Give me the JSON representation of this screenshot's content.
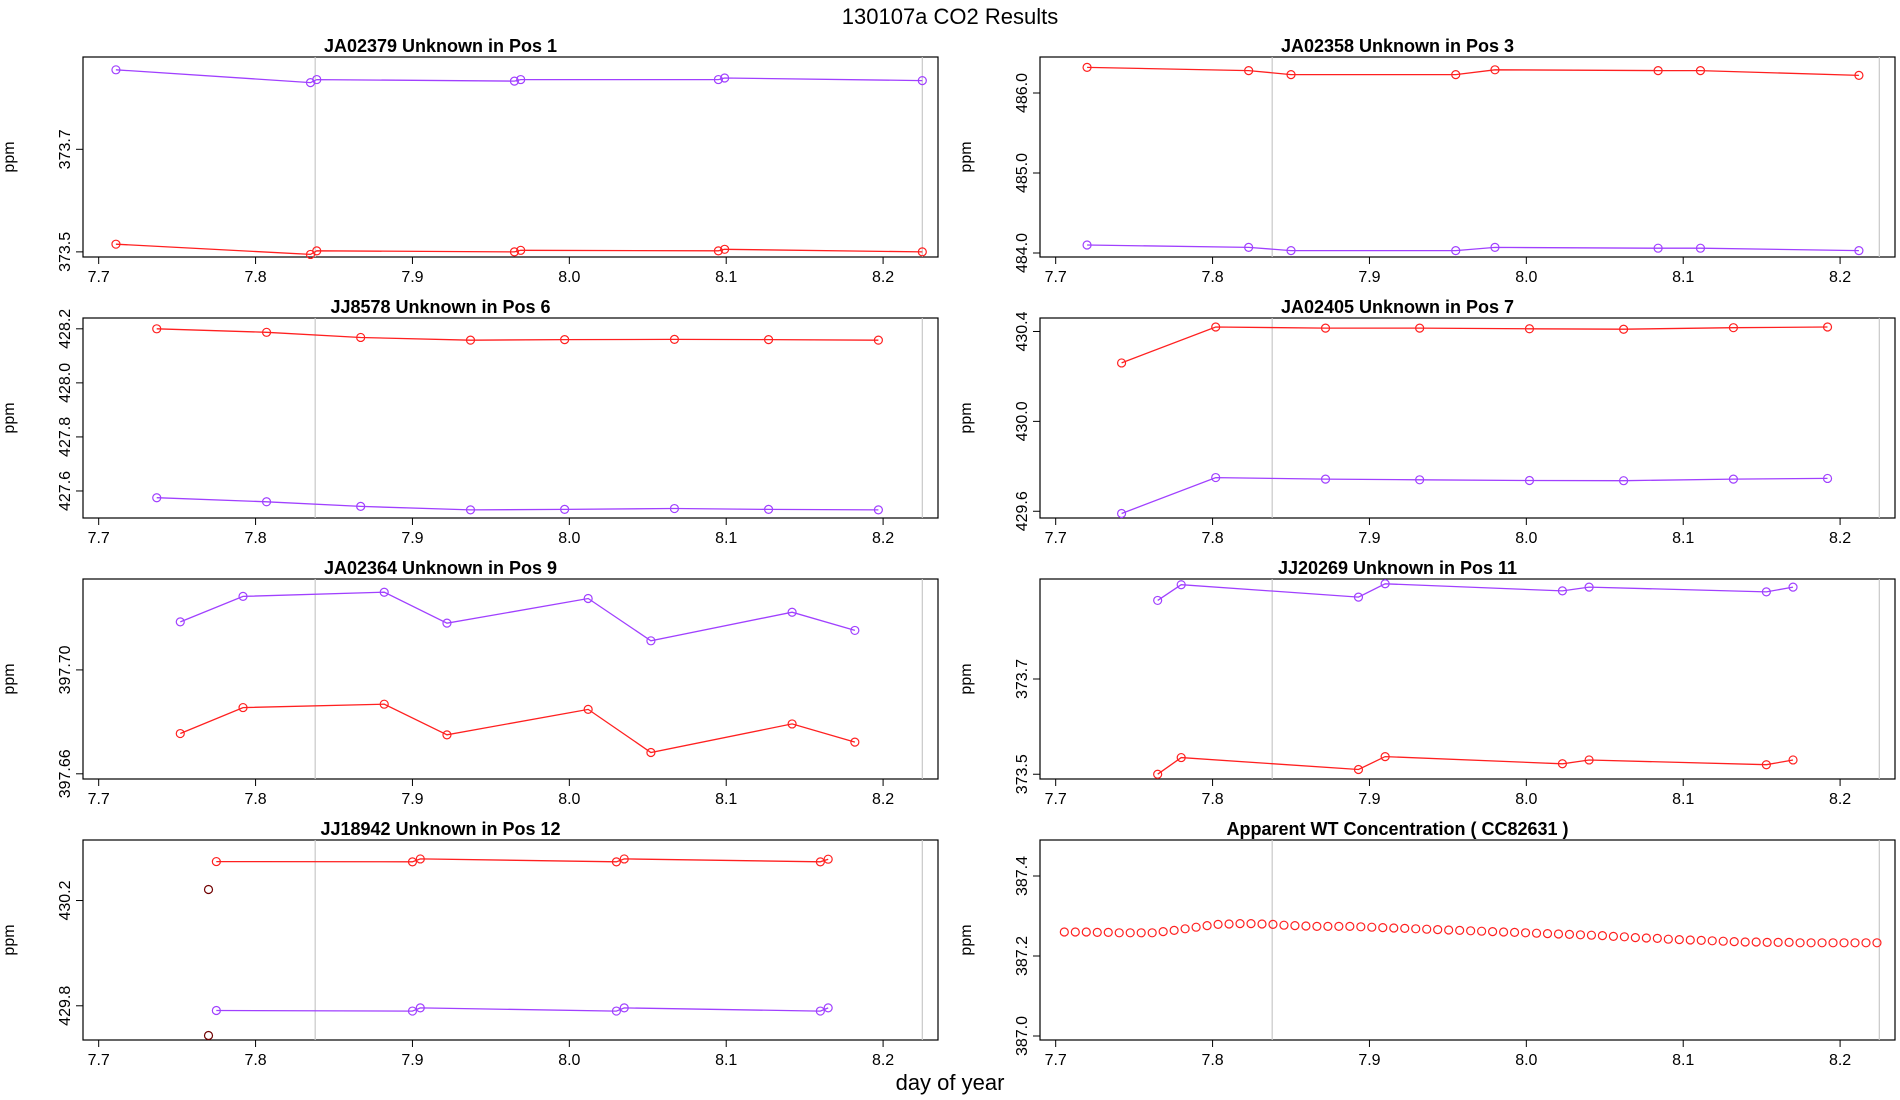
{
  "figure": {
    "title": "130107a  CO2 Results",
    "xlabel": "day of year"
  },
  "colors": {
    "red_series": "#ff2020",
    "purple_series": "#a040ff",
    "outlier": "#700000",
    "marker_line": "#c8c8c8",
    "frame": "#000000"
  },
  "chart_data": [
    {
      "type": "line",
      "title": "JA02379    Unknown in Pos 1",
      "xlabel": "",
      "ylabel": "ppm",
      "xlim": [
        7.69,
        8.235
      ],
      "ylim": [
        373.49,
        373.88
      ],
      "xticks": [
        "7.7",
        "7.8",
        "7.9",
        "8.0",
        "8.1",
        "8.2"
      ],
      "yticks": [
        "373.5",
        "373.7"
      ],
      "vlines": [
        7.838,
        8.225
      ],
      "series": [
        {
          "name": "red",
          "color": "red",
          "x": [
            7.711,
            7.835,
            7.839,
            7.965,
            7.969,
            8.095,
            8.099,
            8.225
          ],
          "y": [
            373.515,
            373.495,
            373.502,
            373.5,
            373.503,
            373.502,
            373.505,
            373.5
          ]
        },
        {
          "name": "purple",
          "color": "purple",
          "x": [
            7.711,
            7.835,
            7.839,
            7.965,
            7.969,
            8.095,
            8.099,
            8.225
          ],
          "y": [
            373.855,
            373.83,
            373.836,
            373.833,
            373.836,
            373.836,
            373.839,
            373.834
          ]
        }
      ]
    },
    {
      "type": "line",
      "title": "JA02358    Unknown in Pos 3",
      "xlabel": "",
      "ylabel": "ppm",
      "xlim": [
        7.69,
        8.235
      ],
      "ylim": [
        483.95,
        486.45
      ],
      "xticks": [
        "7.7",
        "7.8",
        "7.9",
        "8.0",
        "8.1",
        "8.2"
      ],
      "yticks": [
        "484.0",
        "485.0",
        "486.0"
      ],
      "vlines": [
        7.838,
        8.225
      ],
      "series": [
        {
          "name": "red",
          "color": "red",
          "x": [
            7.72,
            7.823,
            7.85,
            7.955,
            7.98,
            8.084,
            8.111,
            8.212
          ],
          "y": [
            486.32,
            486.28,
            486.23,
            486.23,
            486.29,
            486.28,
            486.28,
            486.22
          ]
        },
        {
          "name": "purple",
          "color": "purple",
          "x": [
            7.72,
            7.823,
            7.85,
            7.955,
            7.98,
            8.084,
            8.111,
            8.212
          ],
          "y": [
            484.1,
            484.07,
            484.03,
            484.03,
            484.07,
            484.06,
            484.06,
            484.03
          ]
        }
      ]
    },
    {
      "type": "line",
      "title": "JJ8578    Unknown in Pos 6",
      "xlabel": "",
      "ylabel": "ppm",
      "xlim": [
        7.69,
        8.235
      ],
      "ylim": [
        427.5,
        428.24
      ],
      "xticks": [
        "7.7",
        "7.8",
        "7.9",
        "8.0",
        "8.1",
        "8.2"
      ],
      "yticks": [
        "427.6",
        "427.8",
        "428.0",
        "428.2"
      ],
      "vlines": [
        7.838,
        8.225
      ],
      "series": [
        {
          "name": "red",
          "color": "red",
          "x": [
            7.737,
            7.807,
            7.867,
            7.937,
            7.997,
            8.067,
            8.127,
            8.197
          ],
          "y": [
            428.2,
            428.187,
            428.168,
            428.158,
            428.16,
            428.161,
            428.16,
            428.158
          ]
        },
        {
          "name": "purple",
          "color": "purple",
          "x": [
            7.737,
            7.807,
            7.867,
            7.937,
            7.997,
            8.067,
            8.127,
            8.197
          ],
          "y": [
            427.575,
            427.56,
            427.543,
            427.53,
            427.532,
            427.535,
            427.532,
            427.53
          ]
        }
      ]
    },
    {
      "type": "line",
      "title": "JA02405    Unknown in Pos 7",
      "xlabel": "",
      "ylabel": "ppm",
      "xlim": [
        7.69,
        8.235
      ],
      "ylim": [
        429.57,
        430.46
      ],
      "xticks": [
        "7.7",
        "7.8",
        "7.9",
        "8.0",
        "8.1",
        "8.2"
      ],
      "yticks": [
        "429.6",
        "430.0",
        "430.4"
      ],
      "vlines": [
        7.838,
        8.225
      ],
      "series": [
        {
          "name": "red",
          "color": "red",
          "x": [
            7.742,
            7.802,
            7.872,
            7.932,
            8.002,
            8.062,
            8.132,
            8.192
          ],
          "y": [
            430.26,
            430.42,
            430.415,
            430.415,
            430.412,
            430.41,
            430.417,
            430.42
          ]
        },
        {
          "name": "purple",
          "color": "purple",
          "x": [
            7.742,
            7.802,
            7.872,
            7.932,
            8.002,
            8.062,
            8.132,
            8.192
          ],
          "y": [
            429.59,
            429.75,
            429.743,
            429.74,
            429.737,
            429.736,
            429.743,
            429.746
          ]
        }
      ]
    },
    {
      "type": "line",
      "title": "JA02364    Unknown in Pos 9",
      "xlabel": "",
      "ylabel": "ppm",
      "xlim": [
        7.69,
        8.235
      ],
      "ylim": [
        397.658,
        397.735
      ],
      "xticks": [
        "7.7",
        "7.8",
        "7.9",
        "8.0",
        "8.1",
        "8.2"
      ],
      "yticks": [
        "397.66",
        "397.70"
      ],
      "vlines": [
        7.838,
        8.225
      ],
      "series": [
        {
          "name": "red",
          "color": "red",
          "x": [
            7.752,
            7.792,
            7.882,
            7.922,
            8.012,
            8.052,
            8.142,
            8.182
          ],
          "y": [
            397.6755,
            397.6855,
            397.6868,
            397.675,
            397.6848,
            397.6682,
            397.6792,
            397.6722
          ]
        },
        {
          "name": "purple",
          "color": "purple",
          "x": [
            7.752,
            7.792,
            7.882,
            7.922,
            8.012,
            8.052,
            8.142,
            8.182
          ],
          "y": [
            397.7185,
            397.7283,
            397.7299,
            397.718,
            397.7275,
            397.7112,
            397.7222,
            397.7152
          ]
        }
      ]
    },
    {
      "type": "line",
      "title": "JJ20269    Unknown in Pos 11",
      "xlabel": "",
      "ylabel": "ppm",
      "xlim": [
        7.69,
        8.235
      ],
      "ylim": [
        373.49,
        373.91
      ],
      "xticks": [
        "7.7",
        "7.8",
        "7.9",
        "8.0",
        "8.1",
        "8.2"
      ],
      "yticks": [
        "373.5",
        "373.7"
      ],
      "vlines": [
        7.838,
        8.225
      ],
      "series": [
        {
          "name": "red",
          "color": "red",
          "x": [
            7.765,
            7.78,
            7.893,
            7.91,
            8.023,
            8.04,
            8.153,
            8.17
          ],
          "y": [
            373.5,
            373.535,
            373.51,
            373.537,
            373.522,
            373.53,
            373.52,
            373.53
          ]
        },
        {
          "name": "purple",
          "color": "purple",
          "x": [
            7.765,
            7.78,
            7.893,
            7.91,
            8.023,
            8.04,
            8.153,
            8.17
          ],
          "y": [
            373.865,
            373.898,
            373.872,
            373.9,
            373.885,
            373.893,
            373.883,
            373.893
          ]
        }
      ]
    },
    {
      "type": "line",
      "title": "JJ18942    Unknown in Pos 12",
      "xlabel": "",
      "ylabel": "ppm",
      "xlim": [
        7.69,
        8.235
      ],
      "ylim": [
        429.67,
        430.43
      ],
      "xticks": [
        "7.7",
        "7.8",
        "7.9",
        "8.0",
        "8.1",
        "8.2"
      ],
      "yticks": [
        "429.8",
        "430.2"
      ],
      "vlines": [
        7.838,
        8.225
      ],
      "series": [
        {
          "name": "red",
          "color": "red",
          "x": [
            7.775,
            7.9,
            7.905,
            8.03,
            8.035,
            8.16,
            8.165
          ],
          "y": [
            430.348,
            430.347,
            430.358,
            430.347,
            430.358,
            430.347,
            430.357
          ]
        },
        {
          "name": "purple",
          "color": "purple",
          "x": [
            7.775,
            7.9,
            7.905,
            8.03,
            8.035,
            8.16,
            8.165
          ],
          "y": [
            429.782,
            429.78,
            429.792,
            429.78,
            429.792,
            429.78,
            429.792
          ]
        },
        {
          "name": "outlier",
          "color": "outlier",
          "markers_only": true,
          "x": [
            7.77,
            7.77
          ],
          "y": [
            430.242,
            429.687
          ]
        }
      ]
    },
    {
      "type": "scatter",
      "title": "Apparent WT Concentration ( CC82631 )",
      "xlabel": "",
      "ylabel": "ppm",
      "xlim": [
        7.69,
        8.235
      ],
      "ylim": [
        386.99,
        387.49
      ],
      "xticks": [
        "7.7",
        "7.8",
        "7.9",
        "8.0",
        "8.1",
        "8.2"
      ],
      "yticks": [
        "387.0",
        "387.2",
        "387.4"
      ],
      "vlines": [
        7.838,
        8.225
      ],
      "series": [
        {
          "name": "WT",
          "color": "red",
          "markers_only": true,
          "x": [
            7.7055,
            7.7125,
            7.7195,
            7.7265,
            7.7335,
            7.7405,
            7.7475,
            7.7545,
            7.7615,
            7.7685,
            7.7755,
            7.7825,
            7.7895,
            7.7965,
            7.8035,
            7.8105,
            7.8175,
            7.8245,
            7.8315,
            7.8385,
            7.8455,
            7.8525,
            7.8595,
            7.8665,
            7.8735,
            7.8805,
            7.8875,
            7.8945,
            7.9015,
            7.9085,
            7.9155,
            7.9225,
            7.9295,
            7.9365,
            7.9435,
            7.9505,
            7.9575,
            7.9645,
            7.9715,
            7.9785,
            7.9855,
            7.9925,
            7.9995,
            8.0065,
            8.0135,
            8.0205,
            8.0275,
            8.0345,
            8.0415,
            8.0485,
            8.0555,
            8.0625,
            8.0695,
            8.0765,
            8.0835,
            8.0905,
            8.0975,
            8.1045,
            8.1115,
            8.1185,
            8.1255,
            8.1325,
            8.1395,
            8.1465,
            8.1535,
            8.1605,
            8.1675,
            8.1745,
            8.1815,
            8.1885,
            8.1955,
            8.2025,
            8.2095,
            8.2165,
            8.2235
          ],
          "y": [
            387.26,
            387.26,
            387.26,
            387.259,
            387.259,
            387.258,
            387.258,
            387.258,
            387.258,
            387.261,
            387.264,
            387.268,
            387.272,
            387.276,
            387.279,
            387.28,
            387.281,
            387.281,
            387.28,
            387.279,
            387.277,
            387.276,
            387.275,
            387.274,
            387.274,
            387.274,
            387.274,
            387.273,
            387.272,
            387.271,
            387.27,
            387.269,
            387.268,
            387.267,
            387.266,
            387.265,
            387.264,
            387.263,
            387.262,
            387.261,
            387.26,
            387.259,
            387.258,
            387.257,
            387.256,
            387.255,
            387.254,
            387.253,
            387.252,
            387.251,
            387.249,
            387.248,
            387.246,
            387.245,
            387.244,
            387.242,
            387.241,
            387.24,
            387.239,
            387.238,
            387.237,
            387.236,
            387.235,
            387.235,
            387.234,
            387.234,
            387.234,
            387.233,
            387.233,
            387.233,
            387.233,
            387.233,
            387.233,
            387.233,
            387.233
          ]
        }
      ]
    }
  ]
}
